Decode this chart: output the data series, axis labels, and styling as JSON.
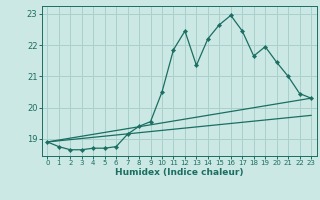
{
  "xlabel": "Humidex (Indice chaleur)",
  "bg_color": "#cce8e4",
  "grid_color": "#a8d0cc",
  "line_color": "#1a6e62",
  "xlim": [
    -0.5,
    23.5
  ],
  "ylim": [
    18.45,
    23.25
  ],
  "yticks": [
    19,
    20,
    21,
    22,
    23
  ],
  "xticks": [
    0,
    1,
    2,
    3,
    4,
    5,
    6,
    7,
    8,
    9,
    10,
    11,
    12,
    13,
    14,
    15,
    16,
    17,
    18,
    19,
    20,
    21,
    22,
    23
  ],
  "line1_x": [
    0,
    1,
    2,
    3,
    4,
    5,
    6,
    7,
    8,
    9,
    10,
    11,
    12,
    13,
    14,
    15,
    16,
    17,
    18,
    19,
    20,
    21,
    22,
    23
  ],
  "line1_y": [
    18.9,
    18.75,
    18.65,
    18.65,
    18.7,
    18.7,
    18.75,
    19.15,
    19.4,
    19.55,
    20.5,
    21.85,
    22.45,
    21.35,
    22.2,
    22.65,
    22.95,
    22.45,
    21.65,
    21.95,
    21.45,
    21.0,
    20.45,
    20.3
  ],
  "line2_x": [
    0,
    23
  ],
  "line2_y": [
    18.9,
    20.3
  ],
  "line3_x": [
    0,
    23
  ],
  "line3_y": [
    18.9,
    19.75
  ]
}
